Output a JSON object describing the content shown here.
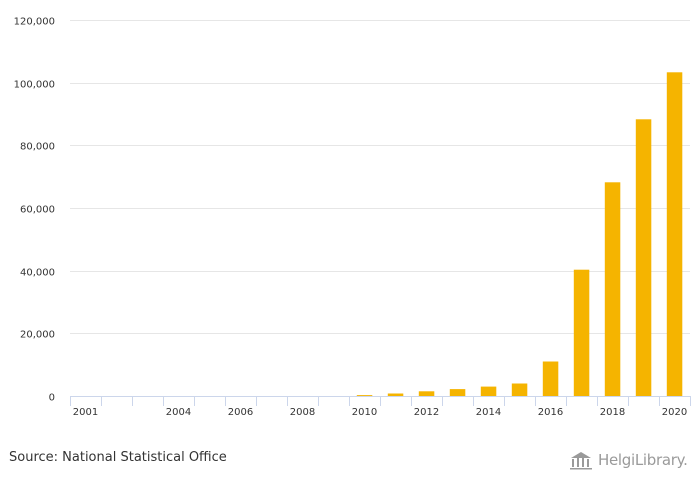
{
  "colors": {
    "bar": "#F5B400",
    "grid": "#e6e6e6",
    "axis": "#ccd6eb",
    "text": "#333333",
    "logo": "#9a9a9a"
  },
  "chart_data": {
    "type": "bar",
    "title": "",
    "xlabel": "",
    "ylabel": "",
    "ylim": [
      0,
      120000
    ],
    "yticks": [
      0,
      20000,
      40000,
      60000,
      80000,
      100000,
      120000
    ],
    "ytick_labels": [
      "0",
      "20,000",
      "40,000",
      "60,000",
      "80,000",
      "100,000",
      "120,000"
    ],
    "categories": [
      "2001",
      "2002",
      "2003",
      "2004",
      "2005",
      "2006",
      "2007",
      "2008",
      "2009",
      "2010",
      "2011",
      "2012",
      "2013",
      "2014",
      "2015",
      "2016",
      "2017",
      "2018",
      "2019",
      "2020"
    ],
    "xtick_labels": [
      "2001",
      "",
      "",
      "2004",
      "",
      "2006",
      "",
      "2008",
      "",
      "2010",
      "",
      "2012",
      "",
      "2014",
      "",
      "2016",
      "",
      "2018",
      "",
      "2020"
    ],
    "values": [
      0,
      0,
      0,
      0,
      0,
      0,
      0,
      0,
      0,
      300,
      800,
      1500,
      2200,
      3000,
      4000,
      11000,
      40300,
      68200,
      88300,
      103300
    ],
    "grid": true,
    "legend": "none"
  },
  "footer": {
    "source": "Source: National Statistical Office",
    "logo_text": "HelgiLibrary."
  }
}
